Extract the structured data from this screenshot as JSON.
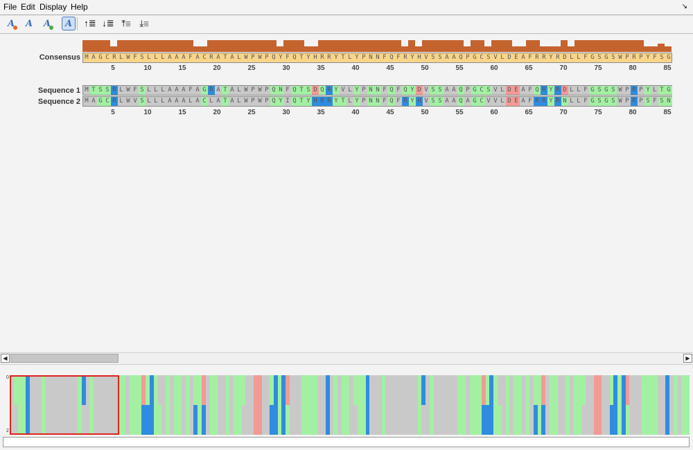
{
  "menu": [
    "File",
    "Edit",
    "Display",
    "Help"
  ],
  "corner_glyph": "↘",
  "toolbar": {
    "buttons": [
      {
        "name": "font-decrease-button",
        "glyph": "A",
        "dot": "#e36b2b"
      },
      {
        "name": "font-italic-button",
        "glyph": "A",
        "dot": ""
      },
      {
        "name": "font-increase-button",
        "glyph": "A",
        "dot": "#4aaa4a"
      },
      {
        "name": "color-scheme-button",
        "glyph": "A",
        "dot": ""
      },
      {
        "name": "move-row-up-button",
        "glyph": "↑≣",
        "dot": ""
      },
      {
        "name": "move-row-down-button",
        "glyph": "↓≣",
        "dot": ""
      },
      {
        "name": "move-row-top-button",
        "glyph": "⤒≣",
        "dot": ""
      },
      {
        "name": "move-row-bottom-button",
        "glyph": "⤓≣",
        "dot": ""
      }
    ]
  },
  "consensus": {
    "label": "Consensus",
    "sequence": "MAGCRLWFSLLLAAAFACRATALWPWPQYFQTYHRRYTLYPNNFQFRYHVSSAAQPGCSVLDEAFRRYRDLLFGSGSWPRPYFSG",
    "conservation": [
      1,
      1,
      1,
      1,
      0.45,
      1,
      1,
      1,
      1,
      1,
      1,
      1,
      1,
      1,
      1,
      1,
      0.45,
      0.45,
      1,
      1,
      1,
      1,
      1,
      1,
      1,
      1,
      1,
      1,
      0.45,
      1,
      1,
      1,
      0.45,
      0.45,
      1,
      1,
      1,
      1,
      1,
      1,
      1,
      1,
      1,
      1,
      1,
      1,
      0.45,
      1,
      0.45,
      1,
      1,
      1,
      1,
      1,
      1,
      0.45,
      1,
      1,
      0.45,
      1,
      1,
      1,
      0.45,
      0.45,
      1,
      1,
      0.45,
      0.45,
      0.45,
      1,
      0.45,
      1,
      1,
      1,
      1,
      1,
      1,
      1,
      1,
      1,
      1,
      0.45,
      0.45,
      0.7,
      0.45
    ]
  },
  "ruler_ticks": [
    "5",
    "10",
    "15",
    "20",
    "25",
    "30",
    "35",
    "40",
    "45",
    "50",
    "55",
    "60",
    "65",
    "70",
    "75",
    "80",
    "85"
  ],
  "sequences": [
    {
      "label": "Sequence 1",
      "residues": "MTSSRLWFSLLLAAAFAGRATALWPWPQNFQTSDQRYVLYPNNFQFQYDVSSAAQPGCSVLDEAFQRYRDLLFGSGSWPRPYLTG"
    },
    {
      "label": "Sequence 2",
      "residues": "MAGCRLWVSLLLAAALACLATALWPWPQYIQTYHRRYTLYPNNFQFRYHVSSAAQAGCVVLDEAFRRYRNLLFGSGSWPRPSFSN"
    }
  ],
  "overview": {
    "row_top": "0",
    "row_bottom": "2"
  },
  "colors": {
    "positive": "#2f8ce0",
    "negative": "#f29a96",
    "polar": "#a3f0a3",
    "hydrophobic": "#c9c9c9",
    "consensus_bg": "#f9d58a",
    "histogram": "#c5632e"
  }
}
